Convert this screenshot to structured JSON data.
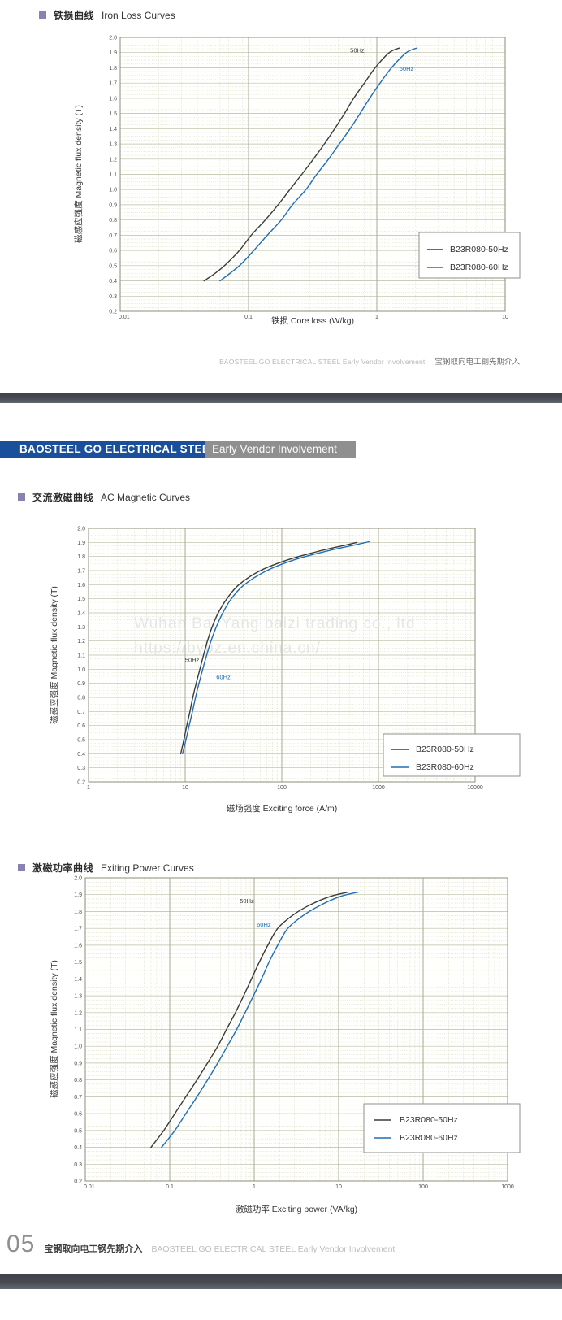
{
  "page": {
    "header_note": {
      "en": "BAOSTEEL GO ELECTRICAL STEEL Early Vendor Involvement",
      "zh": "宝钢取向电工钢先期介入"
    },
    "banner": {
      "primary": "BAOSTEEL GO ELECTRICAL STEEL",
      "secondary": "Early Vendor Involvement",
      "primary_bg": "#1a4f9c",
      "secondary_bg": "#8f8f8f"
    },
    "footer": {
      "page_number": "05",
      "zh": "宝钢取向电工钢先期介入",
      "en": "BAOSTEEL GO ELECTRICAL STEEL Early Vendor Involvement"
    },
    "watermark": {
      "line1": "Wuhan Bai Yang baizi trading co., ltd",
      "line2": "https://bybz.en.china.cn/"
    },
    "colors": {
      "accent_purple": "#8a81b0",
      "curve_50hz": "#3a3a3a",
      "curve_60hz": "#1e6eb5",
      "grid_major": "#bcbca6",
      "grid_minor": "#d9d9c6"
    }
  },
  "sections": [
    {
      "zh": "铁损曲线",
      "en": "Iron Loss Curves"
    },
    {
      "zh": "交流激磁曲线",
      "en": "AC Magnetic Curves"
    },
    {
      "zh": "激磁功率曲线",
      "en": "Exiting Power Curves"
    }
  ],
  "chart_data": [
    {
      "type": "line",
      "title": "Iron Loss Curves",
      "x_scale": "log",
      "xlim": [
        0.01,
        10
      ],
      "x_tick_labels": [
        "0.01",
        "0.1",
        "1",
        "10"
      ],
      "ylim": [
        0.2,
        2.0
      ],
      "y_tick_step": 0.1,
      "y_tick_labels": [
        "2.0",
        "1.9",
        "1.8",
        "1.7",
        "1.6",
        "1.5",
        "1.4",
        "1.3",
        "1.2",
        "1.1",
        "1.0",
        "0.9",
        "0.8",
        "0.7",
        "0.6",
        "0.5",
        "0.4",
        "0.3",
        "0.2"
      ],
      "xlabel_zh": "铁损",
      "xlabel_en": "Core loss (W/kg)",
      "ylabel_zh": "磁感应强度",
      "ylabel_en": "Magnetic flux density (T)",
      "grid": true,
      "legend_position": "lower right",
      "series": [
        {
          "name": "B23R080-50Hz",
          "color": "#3a3a3a",
          "points": [
            [
              0.045,
              0.4
            ],
            [
              0.055,
              0.45
            ],
            [
              0.065,
              0.5
            ],
            [
              0.085,
              0.6
            ],
            [
              0.105,
              0.7
            ],
            [
              0.135,
              0.8
            ],
            [
              0.17,
              0.9
            ],
            [
              0.21,
              1.0
            ],
            [
              0.26,
              1.1
            ],
            [
              0.32,
              1.2
            ],
            [
              0.39,
              1.3
            ],
            [
              0.47,
              1.4
            ],
            [
              0.56,
              1.5
            ],
            [
              0.66,
              1.6
            ],
            [
              0.8,
              1.7
            ],
            [
              0.97,
              1.8
            ],
            [
              1.25,
              1.9
            ],
            [
              1.5,
              1.93
            ]
          ]
        },
        {
          "name": "B23R080-60Hz",
          "color": "#1e6eb5",
          "points": [
            [
              0.06,
              0.4
            ],
            [
              0.085,
              0.5
            ],
            [
              0.11,
              0.6
            ],
            [
              0.14,
              0.7
            ],
            [
              0.18,
              0.8
            ],
            [
              0.22,
              0.9
            ],
            [
              0.28,
              1.0
            ],
            [
              0.34,
              1.1
            ],
            [
              0.42,
              1.2
            ],
            [
              0.51,
              1.3
            ],
            [
              0.62,
              1.4
            ],
            [
              0.74,
              1.5
            ],
            [
              0.88,
              1.6
            ],
            [
              1.06,
              1.7
            ],
            [
              1.3,
              1.8
            ],
            [
              1.7,
              1.9
            ],
            [
              2.05,
              1.93
            ]
          ]
        }
      ],
      "annotations": [
        {
          "text": "50Hz",
          "x": 0.8,
          "y": 1.9,
          "color": "#3a3a3a",
          "anchor": "end"
        },
        {
          "text": "60Hz",
          "x": 1.5,
          "y": 1.78,
          "color": "#1e6eb5",
          "anchor": "start"
        }
      ]
    },
    {
      "type": "line",
      "title": "AC Magnetic Curves",
      "x_scale": "log",
      "xlim": [
        1,
        10000
      ],
      "x_tick_labels": [
        "1",
        "10",
        "100",
        "1000",
        "10000"
      ],
      "ylim": [
        0.2,
        2.0
      ],
      "y_tick_step": 0.1,
      "y_tick_labels": [
        "2.0",
        "1.9",
        "1.8",
        "1.7",
        "1.6",
        "1.5",
        "1.4",
        "1.3",
        "1.2",
        "1.1",
        "1.0",
        "0.9",
        "0.8",
        "0.7",
        "0.6",
        "0.5",
        "0.4",
        "0.3",
        "0.2"
      ],
      "xlabel_zh": "磁场强度",
      "xlabel_en": "Exciting force (A/m)",
      "ylabel_zh": "磁感应强度",
      "ylabel_en": "Magnetic flux density (T)",
      "grid": true,
      "legend_position": "lower right",
      "series": [
        {
          "name": "B23R080-50Hz",
          "color": "#3a3a3a",
          "points": [
            [
              9,
              0.4
            ],
            [
              9.7,
              0.5
            ],
            [
              10.4,
              0.6
            ],
            [
              11.2,
              0.7
            ],
            [
              12,
              0.8
            ],
            [
              13,
              0.9
            ],
            [
              14.2,
              1.0
            ],
            [
              15.5,
              1.1
            ],
            [
              17,
              1.2
            ],
            [
              19,
              1.3
            ],
            [
              22,
              1.4
            ],
            [
              27,
              1.5
            ],
            [
              36,
              1.6
            ],
            [
              60,
              1.7
            ],
            [
              120,
              1.78
            ],
            [
              250,
              1.84
            ],
            [
              450,
              1.88
            ],
            [
              600,
              1.9
            ]
          ]
        },
        {
          "name": "B23R080-60Hz",
          "color": "#1e6eb5",
          "points": [
            [
              9.4,
              0.4
            ],
            [
              10.2,
              0.5
            ],
            [
              11,
              0.6
            ],
            [
              11.9,
              0.7
            ],
            [
              12.8,
              0.8
            ],
            [
              13.9,
              0.9
            ],
            [
              15.2,
              1.0
            ],
            [
              16.7,
              1.1
            ],
            [
              18.5,
              1.2
            ],
            [
              21,
              1.3
            ],
            [
              24.5,
              1.4
            ],
            [
              30,
              1.5
            ],
            [
              41,
              1.6
            ],
            [
              70,
              1.7
            ],
            [
              140,
              1.78
            ],
            [
              300,
              1.84
            ],
            [
              550,
              1.88
            ],
            [
              800,
              1.905
            ]
          ]
        }
      ],
      "annotations": [
        {
          "text": "50Hz",
          "x": 14,
          "y": 1.05,
          "color": "#3a3a3a",
          "anchor": "end"
        },
        {
          "text": "60Hz",
          "x": 21,
          "y": 0.93,
          "color": "#1e6eb5",
          "anchor": "start"
        }
      ]
    },
    {
      "type": "line",
      "title": "Exiting Power Curves",
      "x_scale": "log",
      "xlim": [
        0.01,
        1000
      ],
      "x_tick_labels": [
        "0.01",
        "0.1",
        "1",
        "10",
        "100",
        "1000"
      ],
      "ylim": [
        0.2,
        2.0
      ],
      "y_tick_step": 0.1,
      "y_tick_labels": [
        "2.0",
        "1.9",
        "1.8",
        "1.7",
        "1.6",
        "1.5",
        "1.4",
        "1.3",
        "1.2",
        "1.1",
        "1.0",
        "0.9",
        "0.8",
        "0.7",
        "0.6",
        "0.5",
        "0.4",
        "0.3",
        "0.2"
      ],
      "xlabel_zh": "激磁功率",
      "xlabel_en": "Exciting power (VA/kg)",
      "ylabel_zh": "磁感应强度",
      "ylabel_en": "Magnetic flux density (T)",
      "grid": true,
      "legend_position": "lower right",
      "series": [
        {
          "name": "B23R080-50Hz",
          "color": "#3a3a3a",
          "points": [
            [
              0.06,
              0.4
            ],
            [
              0.085,
              0.5
            ],
            [
              0.115,
              0.6
            ],
            [
              0.155,
              0.7
            ],
            [
              0.21,
              0.8
            ],
            [
              0.28,
              0.9
            ],
            [
              0.37,
              1.0
            ],
            [
              0.47,
              1.1
            ],
            [
              0.6,
              1.2
            ],
            [
              0.75,
              1.3
            ],
            [
              0.93,
              1.4
            ],
            [
              1.15,
              1.5
            ],
            [
              1.45,
              1.6
            ],
            [
              1.9,
              1.7
            ],
            [
              2.9,
              1.78
            ],
            [
              4.6,
              1.84
            ],
            [
              8,
              1.89
            ],
            [
              13,
              1.915
            ]
          ]
        },
        {
          "name": "B23R080-60Hz",
          "color": "#1e6eb5",
          "points": [
            [
              0.08,
              0.4
            ],
            [
              0.115,
              0.5
            ],
            [
              0.155,
              0.6
            ],
            [
              0.21,
              0.7
            ],
            [
              0.28,
              0.8
            ],
            [
              0.37,
              0.9
            ],
            [
              0.48,
              1.0
            ],
            [
              0.62,
              1.1
            ],
            [
              0.78,
              1.2
            ],
            [
              0.98,
              1.3
            ],
            [
              1.22,
              1.4
            ],
            [
              1.5,
              1.5
            ],
            [
              1.9,
              1.6
            ],
            [
              2.5,
              1.7
            ],
            [
              3.9,
              1.78
            ],
            [
              6.2,
              1.84
            ],
            [
              10.5,
              1.89
            ],
            [
              17,
              1.915
            ]
          ]
        }
      ],
      "annotations": [
        {
          "text": "50Hz",
          "x": 0.82,
          "y": 1.85,
          "color": "#3a3a3a",
          "anchor": "middle"
        },
        {
          "text": "60Hz",
          "x": 1.3,
          "y": 1.71,
          "color": "#1e6eb5",
          "anchor": "middle"
        }
      ]
    }
  ]
}
